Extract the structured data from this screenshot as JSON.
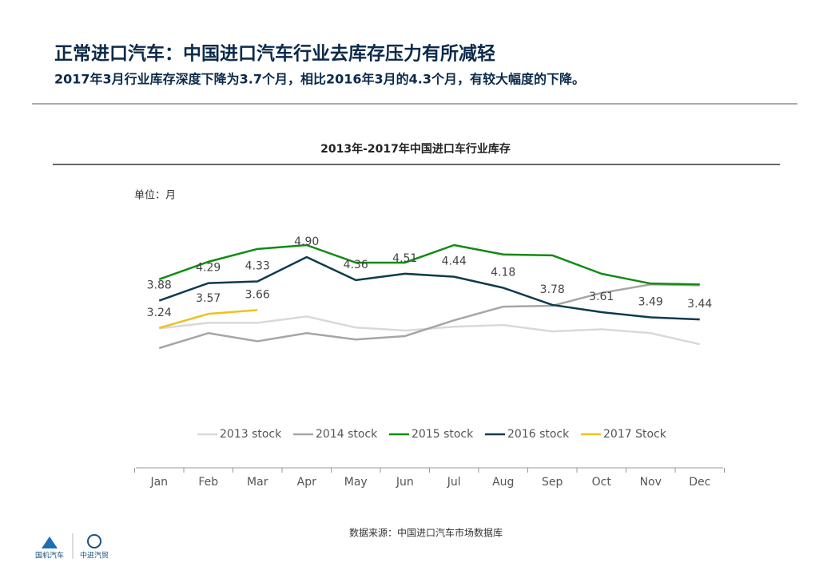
{
  "header": {
    "title": "正常进口汽车：中国进口汽车行业去库存压力有所减轻",
    "subtitle": "2017年3月行业库存深度下降为3.7个月，相比2016年3月的4.3个月，有较大幅度的下降。"
  },
  "chart_data": {
    "type": "line",
    "title": "2013年-2017年中国进口车行业库存",
    "unit_label": "单位：月",
    "categories": [
      "Jan",
      "Feb",
      "Mar",
      "Apr",
      "May",
      "Jun",
      "Jul",
      "Aug",
      "Sep",
      "Oct",
      "Nov",
      "Dec"
    ],
    "series": [
      {
        "name": "2013 stock",
        "color": "#d9d9d9",
        "values": [
          3.23,
          3.36,
          3.36,
          3.51,
          3.25,
          3.18,
          3.27,
          3.31,
          3.16,
          3.21,
          3.12,
          2.86
        ]
      },
      {
        "name": "2014 stock",
        "color": "#a6a6a6",
        "values": [
          2.77,
          3.12,
          2.93,
          3.12,
          2.97,
          3.05,
          3.42,
          3.74,
          3.76,
          4.06,
          4.26,
          4.24
        ]
      },
      {
        "name": "2015 stock",
        "color": "#138a13",
        "values": [
          4.38,
          4.79,
          5.09,
          5.18,
          4.77,
          4.77,
          5.18,
          4.96,
          4.94,
          4.51,
          4.28,
          4.26
        ]
      },
      {
        "name": "2016 stock",
        "color": "#0d3b4f",
        "values": [
          3.88,
          4.29,
          4.33,
          4.9,
          4.36,
          4.51,
          4.44,
          4.18,
          3.78,
          3.61,
          3.49,
          3.44
        ],
        "value_labels": [
          "3.88",
          "4.29",
          "4.33",
          "4.90",
          "4.36",
          "4.51",
          "4.44",
          "4.18",
          "3.78",
          "3.61",
          "3.49",
          "3.44"
        ]
      },
      {
        "name": "2017 Stock",
        "color": "#f0c020",
        "values": [
          3.24,
          3.57,
          3.66,
          null,
          null,
          null,
          null,
          null,
          null,
          null,
          null,
          null
        ],
        "value_labels": [
          "3.24",
          "3.57",
          "3.66",
          null,
          null,
          null,
          null,
          null,
          null,
          null,
          null,
          null
        ]
      }
    ],
    "legend": "bottom"
  },
  "footer": {
    "source": "数据来源：中国进口汽车市场数据库",
    "logo_left": "国机汽车",
    "logo_right": "中进汽贸"
  }
}
